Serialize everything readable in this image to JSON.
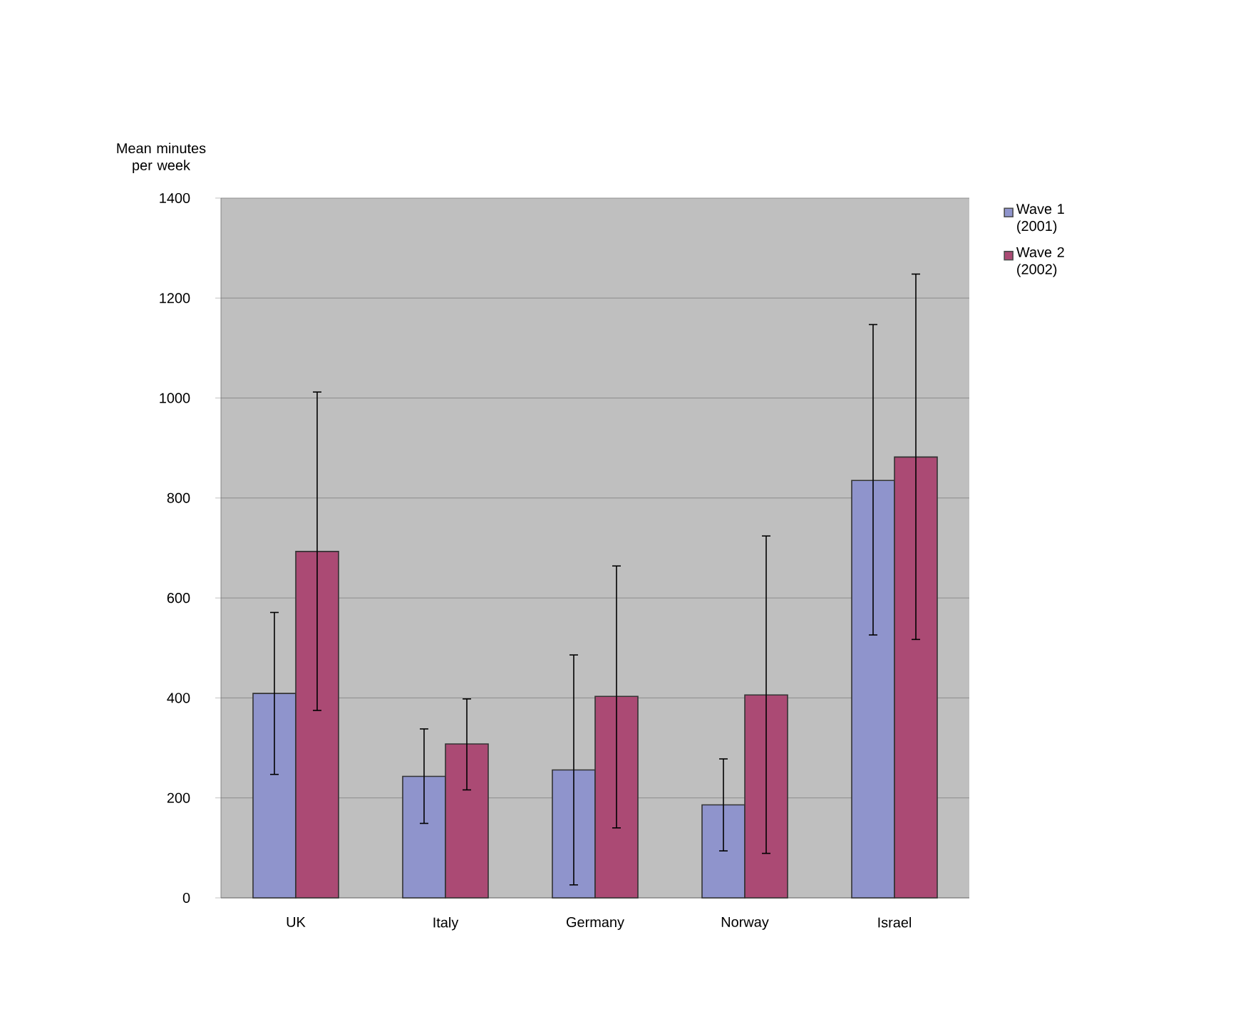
{
  "chart_data": {
    "type": "bar",
    "ylabel": "Mean minutes per week",
    "categories": [
      "UK",
      "Italy",
      "Germany",
      "Norway",
      "Israel"
    ],
    "series": [
      {
        "name": "Wave 1 (2001)",
        "color": "#8f94cc",
        "values": [
          409,
          243,
          256,
          186,
          835
        ],
        "errors": [
          [
            247,
            571
          ],
          [
            149,
            338
          ],
          [
            26,
            486
          ],
          [
            94,
            278
          ],
          [
            526,
            1147
          ]
        ]
      },
      {
        "name": "Wave 2 (2002)",
        "color": "#ab4a74",
        "values": [
          693,
          308,
          403,
          406,
          882
        ],
        "errors": [
          [
            375,
            1012
          ],
          [
            216,
            398
          ],
          [
            140,
            664
          ],
          [
            89,
            724
          ],
          [
            517,
            1248
          ]
        ]
      }
    ],
    "ylim": [
      0,
      1400
    ],
    "yticks": [
      0,
      200,
      400,
      600,
      800,
      1000,
      1200,
      1400
    ],
    "grid": "y",
    "legend": "top right"
  }
}
